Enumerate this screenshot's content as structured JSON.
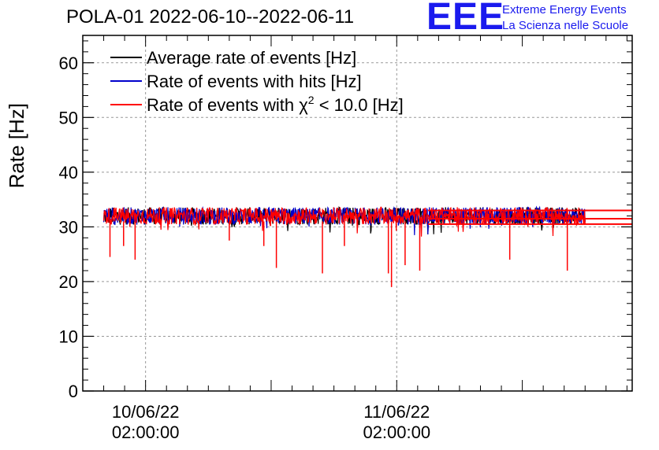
{
  "header": {
    "title": "POLA-01 2022-06-10--2022-06-11",
    "logo_text": "EEE",
    "logo_line1": "Extreme Energy Events",
    "logo_line2": "La Scienza nelle Scuole"
  },
  "chart_data": {
    "type": "line",
    "title": "POLA-01 2022-06-10--2022-06-11",
    "ylabel": "Rate [Hz]",
    "xlabel": "",
    "ylim": [
      0,
      65
    ],
    "y_ticks": [
      0,
      10,
      20,
      30,
      40,
      50,
      60
    ],
    "x_tick_labels": [
      {
        "date": "10/06/22",
        "time": "02:00:00",
        "x_hours": 2
      },
      {
        "date": "11/06/22",
        "time": "02:00:00",
        "x_hours": 26
      }
    ],
    "xlim_hours": [
      -4,
      48.5
    ],
    "grid": true,
    "legend": {
      "placement": "top-left",
      "entries": [
        {
          "label": "Average rate of events [Hz]",
          "color": "#000000"
        },
        {
          "label": "Rate of events with hits [Hz]",
          "color": "#0000cc"
        },
        {
          "label_prefix": "Rate of events with ",
          "label_symbol": "χ",
          "label_sup": "2",
          "label_suffix": " < 10.0 [Hz]",
          "color": "#ff0000"
        }
      ]
    },
    "series": [
      {
        "name": "Average rate of events [Hz]",
        "color": "#000000",
        "x_range_hours": [
          -2,
          44
        ],
        "mean": 32.0,
        "noise": 1.0
      },
      {
        "name": "Rate of events with hits [Hz]",
        "color": "#0000cc",
        "x_range_hours": [
          -2,
          44
        ],
        "mean": 32.0,
        "noise": 1.0
      },
      {
        "name": "Rate of events with χ2 < 10.0 [Hz]",
        "color": "#ff0000",
        "x_range_hours": [
          -2,
          44
        ],
        "mean": 32.0,
        "noise": 1.0
      }
    ],
    "dips": [
      {
        "x_hours": -1.4,
        "y": 24.5
      },
      {
        "x_hours": -0.1,
        "y": 26.5
      },
      {
        "x_hours": 1.0,
        "y": 24.0
      },
      {
        "x_hours": 10.0,
        "y": 27.5
      },
      {
        "x_hours": 13.3,
        "y": 26.5
      },
      {
        "x_hours": 14.5,
        "y": 22.5
      },
      {
        "x_hours": 18.9,
        "y": 21.5
      },
      {
        "x_hours": 21.0,
        "y": 26.5
      },
      {
        "x_hours": 25.5,
        "y": 19.0
      },
      {
        "x_hours": 25.2,
        "y": 21.5
      },
      {
        "x_hours": 26.8,
        "y": 23.0
      },
      {
        "x_hours": 28.2,
        "y": 22.0
      },
      {
        "x_hours": 36.8,
        "y": 24.0
      },
      {
        "x_hours": 42.3,
        "y": 22.0
      }
    ],
    "flat_tails": [
      {
        "x_from_hours": 29.0,
        "x_to_hours": 48.5,
        "y": 33.0
      },
      {
        "x_from_hours": 29.0,
        "x_to_hours": 48.5,
        "y": 31.5
      },
      {
        "x_from_hours": 29.0,
        "x_to_hours": 48.5,
        "y": 30.5
      }
    ]
  }
}
